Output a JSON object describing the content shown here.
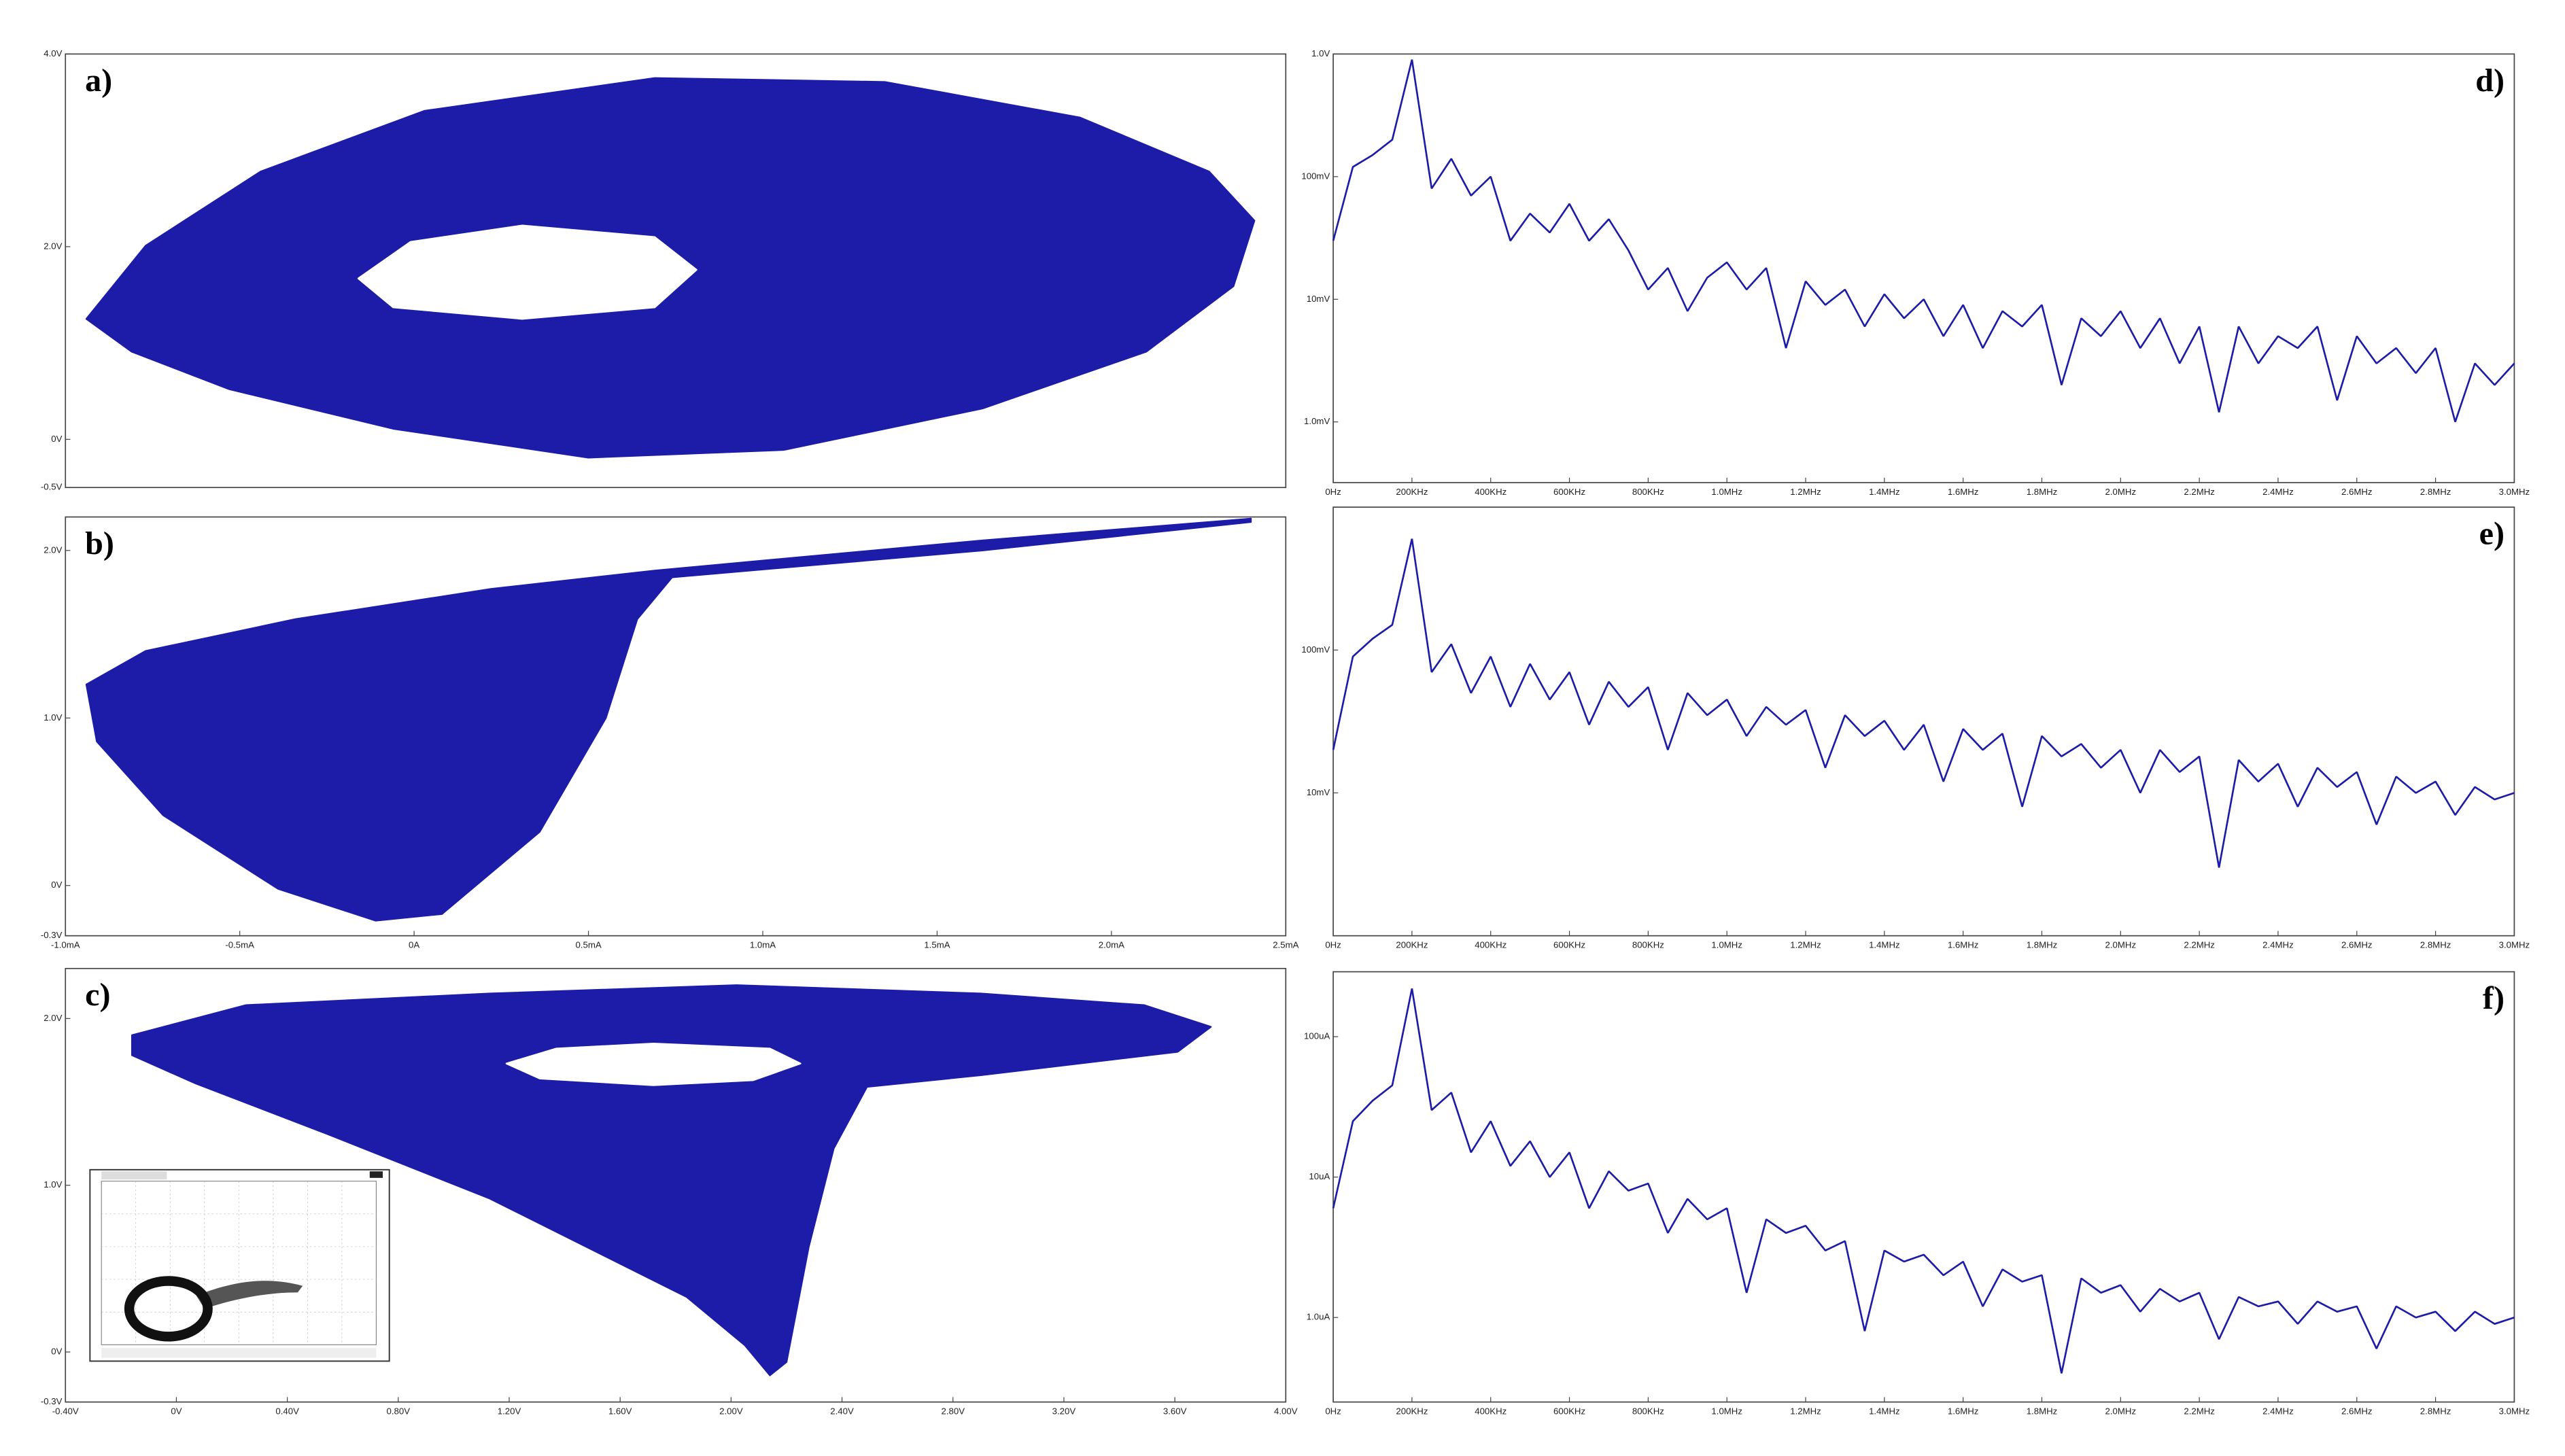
{
  "chart_data": [
    {
      "type": "area",
      "title": "a)",
      "xlim": [
        -1.0,
        2.5
      ],
      "ylim": [
        -0.5,
        4.0
      ],
      "yticks": [
        {
          "value": 4,
          "label": "4.0V"
        },
        {
          "value": 2,
          "label": "2.0V"
        },
        {
          "value": 0,
          "label": "0V"
        },
        {
          "value": -0.5,
          "label": "-0.5V"
        }
      ],
      "series": [
        {
          "color": "#1c1ca8",
          "x": [
            -0.94,
            -0.77,
            -0.44,
            0.03,
            0.69,
            1.35,
            1.91,
            2.28,
            2.41,
            2.35,
            2.1,
            1.63,
            1.06,
            0.5,
            -0.06,
            -0.53,
            -0.81
          ],
          "values": [
            1.25,
            2.01,
            2.78,
            3.41,
            3.75,
            3.71,
            3.34,
            2.78,
            2.27,
            1.59,
            0.91,
            0.32,
            -0.11,
            -0.19,
            0.11,
            0.52,
            0.91
          ]
        },
        {
          "color": "#ffffff",
          "x": [
            -0.16,
            -0.01,
            0.31,
            0.69,
            0.81,
            0.69,
            0.31,
            -0.06
          ],
          "values": [
            1.67,
            2.05,
            2.22,
            2.1,
            1.76,
            1.37,
            1.25,
            1.37
          ]
        }
      ]
    },
    {
      "type": "area",
      "title": "b)",
      "xlim": [
        -1.0,
        2.5
      ],
      "ylim": [
        -0.3,
        2.2
      ],
      "xticks": [
        {
          "value": -1.0,
          "label": "-1.0mA"
        },
        {
          "value": -0.5,
          "label": "-0.5mA"
        },
        {
          "value": 0,
          "label": "0A"
        },
        {
          "value": 0.5,
          "label": "0.5mA"
        },
        {
          "value": 1.0,
          "label": "1.0mA"
        },
        {
          "value": 1.5,
          "label": "1.5mA"
        },
        {
          "value": 2.0,
          "label": "2.0mA"
        },
        {
          "value": 2.5,
          "label": "2.5mA"
        }
      ],
      "yticks": [
        {
          "value": 2,
          "label": "2.0V"
        },
        {
          "value": 1,
          "label": "1.0V"
        },
        {
          "value": 0,
          "label": "0V"
        },
        {
          "value": -0.3,
          "label": "-0.3V"
        }
      ],
      "series": [
        {
          "color": "#1c1ca8",
          "x": [
            -0.94,
            -0.77,
            -0.34,
            0.22,
            0.69,
            1.63,
            2.4,
            2.4,
            1.63,
            0.74,
            0.64,
            0.55,
            0.36,
            0.08,
            -0.11,
            -0.39,
            -0.72,
            -0.91
          ],
          "values": [
            1.2,
            1.4,
            1.59,
            1.77,
            1.88,
            2.06,
            2.19,
            2.17,
            2.0,
            1.84,
            1.59,
            1.0,
            0.32,
            -0.17,
            -0.21,
            -0.02,
            0.42,
            0.86
          ]
        }
      ]
    },
    {
      "type": "area",
      "title": "c)",
      "xlim": [
        -0.4,
        4.0
      ],
      "ylim": [
        -0.3,
        2.3
      ],
      "xticks": [
        {
          "value": -0.4,
          "label": "-0.40V"
        },
        {
          "value": 0,
          "label": "0V"
        },
        {
          "value": 0.4,
          "label": "0.40V"
        },
        {
          "value": 0.8,
          "label": "0.80V"
        },
        {
          "value": 1.2,
          "label": "1.20V"
        },
        {
          "value": 1.6,
          "label": "1.60V"
        },
        {
          "value": 2.0,
          "label": "2.00V"
        },
        {
          "value": 2.4,
          "label": "2.40V"
        },
        {
          "value": 2.8,
          "label": "2.80V"
        },
        {
          "value": 3.2,
          "label": "3.20V"
        },
        {
          "value": 3.6,
          "label": "3.60V"
        },
        {
          "value": 4.0,
          "label": "4.00V"
        }
      ],
      "yticks": [
        {
          "value": 2,
          "label": "2.0V"
        },
        {
          "value": 1,
          "label": "1.0V"
        },
        {
          "value": 0,
          "label": "0V"
        },
        {
          "value": -0.3,
          "label": "-0.3V"
        }
      ],
      "series": [
        {
          "color": "#1c1ca8",
          "x": [
            -0.16,
            0.25,
            1.13,
            2.02,
            2.9,
            3.49,
            3.73,
            3.61,
            2.9,
            2.49,
            2.37,
            2.28,
            2.2,
            2.14,
            2.05,
            1.84,
            1.13,
            0.54,
            0.07,
            -0.16
          ],
          "values": [
            1.9,
            2.08,
            2.15,
            2.2,
            2.15,
            2.08,
            1.95,
            1.8,
            1.66,
            1.59,
            1.22,
            0.63,
            -0.06,
            -0.14,
            0.04,
            0.33,
            0.92,
            1.31,
            1.61,
            1.78
          ]
        },
        {
          "color": "#ffffff",
          "x": [
            1.19,
            1.37,
            1.72,
            2.14,
            2.25,
            2.08,
            1.72,
            1.31
          ],
          "values": [
            1.73,
            1.82,
            1.85,
            1.82,
            1.73,
            1.63,
            1.6,
            1.64
          ]
        }
      ]
    },
    {
      "type": "line",
      "title": "d)",
      "ylog": true,
      "xlim": [
        0,
        3000000
      ],
      "ylim": [
        0.00032,
        1
      ],
      "xticks": [
        {
          "value": 0,
          "label": "0Hz"
        },
        {
          "value": 200000,
          "label": "200KHz"
        },
        {
          "value": 400000,
          "label": "400KHz"
        },
        {
          "value": 600000,
          "label": "600KHz"
        },
        {
          "value": 800000,
          "label": "800KHz"
        },
        {
          "value": 1000000,
          "label": "1.0MHz"
        },
        {
          "value": 1200000,
          "label": "1.2MHz"
        },
        {
          "value": 1400000,
          "label": "1.4MHz"
        },
        {
          "value": 1600000,
          "label": "1.6MHz"
        },
        {
          "value": 1800000,
          "label": "1.8MHz"
        },
        {
          "value": 2000000,
          "label": "2.0MHz"
        },
        {
          "value": 2200000,
          "label": "2.2MHz"
        },
        {
          "value": 2400000,
          "label": "2.4MHz"
        },
        {
          "value": 2600000,
          "label": "2.6MHz"
        },
        {
          "value": 2800000,
          "label": "2.8MHz"
        },
        {
          "value": 3000000,
          "label": "3.0MHz"
        }
      ],
      "yticks": [
        {
          "value": 1,
          "label": "1.0V"
        },
        {
          "value": 0.1,
          "label": "100mV"
        },
        {
          "value": 0.01,
          "label": "10mV"
        },
        {
          "value": 0.001,
          "label": "1.0mV"
        }
      ],
      "x": [
        0,
        50000,
        100000,
        150000,
        200000,
        250000,
        300000,
        350000,
        400000,
        450000,
        500000,
        550000,
        600000,
        650000,
        700000,
        750000,
        800000,
        850000,
        900000,
        950000,
        1000000,
        1050000,
        1100000,
        1150000,
        1200000,
        1250000,
        1300000,
        1350000,
        1400000,
        1450000,
        1500000,
        1550000,
        1600000,
        1650000,
        1700000,
        1750000,
        1800000,
        1850000,
        1900000,
        1950000,
        2000000,
        2050000,
        2100000,
        2150000,
        2200000,
        2250000,
        2300000,
        2350000,
        2400000,
        2450000,
        2500000,
        2550000,
        2600000,
        2650000,
        2700000,
        2750000,
        2800000,
        2850000,
        2900000,
        2950000,
        3000000
      ],
      "series": [
        {
          "color": "#1c1ca8",
          "values": [
            0.03,
            0.12,
            0.15,
            0.2,
            0.9,
            0.08,
            0.14,
            0.07,
            0.1,
            0.03,
            0.05,
            0.035,
            0.06,
            0.03,
            0.045,
            0.025,
            0.012,
            0.018,
            0.008,
            0.015,
            0.02,
            0.012,
            0.018,
            0.004,
            0.014,
            0.009,
            0.012,
            0.006,
            0.011,
            0.007,
            0.01,
            0.005,
            0.009,
            0.004,
            0.008,
            0.006,
            0.009,
            0.002,
            0.007,
            0.005,
            0.008,
            0.004,
            0.007,
            0.003,
            0.006,
            0.0012,
            0.006,
            0.003,
            0.005,
            0.004,
            0.006,
            0.0015,
            0.005,
            0.003,
            0.004,
            0.0025,
            0.004,
            0.001,
            0.003,
            0.002,
            0.003
          ]
        }
      ]
    },
    {
      "type": "line",
      "title": "e)",
      "ylog": true,
      "xlim": [
        0,
        3000000
      ],
      "ylim": [
        0.001,
        1
      ],
      "xticks": [
        {
          "value": 0,
          "label": "0Hz"
        },
        {
          "value": 200000,
          "label": "200KHz"
        },
        {
          "value": 400000,
          "label": "400KHz"
        },
        {
          "value": 600000,
          "label": "600KHz"
        },
        {
          "value": 800000,
          "label": "800KHz"
        },
        {
          "value": 1000000,
          "label": "1.0MHz"
        },
        {
          "value": 1200000,
          "label": "1.2MHz"
        },
        {
          "value": 1400000,
          "label": "1.4MHz"
        },
        {
          "value": 1600000,
          "label": "1.6MHz"
        },
        {
          "value": 1800000,
          "label": "1.8MHz"
        },
        {
          "value": 2000000,
          "label": "2.0MHz"
        },
        {
          "value": 2200000,
          "label": "2.2MHz"
        },
        {
          "value": 2400000,
          "label": "2.4MHz"
        },
        {
          "value": 2600000,
          "label": "2.6MHz"
        },
        {
          "value": 2800000,
          "label": "2.8MHz"
        },
        {
          "value": 3000000,
          "label": "3.0MHz"
        }
      ],
      "yticks": [
        {
          "value": 0.1,
          "label": "100mV"
        },
        {
          "value": 0.01,
          "label": "10mV"
        }
      ],
      "x": [
        0,
        50000,
        100000,
        150000,
        200000,
        250000,
        300000,
        350000,
        400000,
        450000,
        500000,
        550000,
        600000,
        650000,
        700000,
        750000,
        800000,
        850000,
        900000,
        950000,
        1000000,
        1050000,
        1100000,
        1150000,
        1200000,
        1250000,
        1300000,
        1350000,
        1400000,
        1450000,
        1500000,
        1550000,
        1600000,
        1650000,
        1700000,
        1750000,
        1800000,
        1850000,
        1900000,
        1950000,
        2000000,
        2050000,
        2100000,
        2150000,
        2200000,
        2250000,
        2300000,
        2350000,
        2400000,
        2450000,
        2500000,
        2550000,
        2600000,
        2650000,
        2700000,
        2750000,
        2800000,
        2850000,
        2900000,
        2950000,
        3000000
      ],
      "series": [
        {
          "color": "#1c1ca8",
          "values": [
            0.02,
            0.09,
            0.12,
            0.15,
            0.6,
            0.07,
            0.11,
            0.05,
            0.09,
            0.04,
            0.08,
            0.045,
            0.07,
            0.03,
            0.06,
            0.04,
            0.055,
            0.02,
            0.05,
            0.035,
            0.045,
            0.025,
            0.04,
            0.03,
            0.038,
            0.015,
            0.035,
            0.025,
            0.032,
            0.02,
            0.03,
            0.012,
            0.028,
            0.02,
            0.026,
            0.008,
            0.025,
            0.018,
            0.022,
            0.015,
            0.02,
            0.01,
            0.02,
            0.014,
            0.018,
            0.003,
            0.017,
            0.012,
            0.016,
            0.008,
            0.015,
            0.011,
            0.014,
            0.006,
            0.013,
            0.01,
            0.012,
            0.007,
            0.011,
            0.009,
            0.01
          ]
        }
      ]
    },
    {
      "type": "line",
      "title": "f)",
      "ylog": true,
      "xlim": [
        0,
        3000000
      ],
      "ylim": [
        2.5e-07,
        0.00029
      ],
      "xticks": [
        {
          "value": 0,
          "label": "0Hz"
        },
        {
          "value": 200000,
          "label": "200KHz"
        },
        {
          "value": 400000,
          "label": "400KHz"
        },
        {
          "value": 600000,
          "label": "600KHz"
        },
        {
          "value": 800000,
          "label": "800KHz"
        },
        {
          "value": 1000000,
          "label": "1.0MHz"
        },
        {
          "value": 1200000,
          "label": "1.2MHz"
        },
        {
          "value": 1400000,
          "label": "1.4MHz"
        },
        {
          "value": 1600000,
          "label": "1.6MHz"
        },
        {
          "value": 1800000,
          "label": "1.8MHz"
        },
        {
          "value": 2000000,
          "label": "2.0MHz"
        },
        {
          "value": 2200000,
          "label": "2.2MHz"
        },
        {
          "value": 2400000,
          "label": "2.4MHz"
        },
        {
          "value": 2600000,
          "label": "2.6MHz"
        },
        {
          "value": 2800000,
          "label": "2.8MHz"
        },
        {
          "value": 3000000,
          "label": "3.0MHz"
        }
      ],
      "yticks": [
        {
          "value": 0.0001,
          "label": "100uA"
        },
        {
          "value": 1e-05,
          "label": "10uA"
        },
        {
          "value": 1e-06,
          "label": "1.0uA"
        }
      ],
      "x": [
        0,
        50000,
        100000,
        150000,
        200000,
        250000,
        300000,
        350000,
        400000,
        450000,
        500000,
        550000,
        600000,
        650000,
        700000,
        750000,
        800000,
        850000,
        900000,
        950000,
        1000000,
        1050000,
        1100000,
        1150000,
        1200000,
        1250000,
        1300000,
        1350000,
        1400000,
        1450000,
        1500000,
        1550000,
        1600000,
        1650000,
        1700000,
        1750000,
        1800000,
        1850000,
        1900000,
        1950000,
        2000000,
        2050000,
        2100000,
        2150000,
        2200000,
        2250000,
        2300000,
        2350000,
        2400000,
        2450000,
        2500000,
        2550000,
        2600000,
        2650000,
        2700000,
        2750000,
        2800000,
        2850000,
        2900000,
        2950000,
        3000000
      ],
      "series": [
        {
          "color": "#1c1ca8",
          "values": [
            6e-06,
            2.5e-05,
            3.5e-05,
            4.5e-05,
            0.00022,
            3e-05,
            4e-05,
            1.5e-05,
            2.5e-05,
            1.2e-05,
            1.8e-05,
            1e-05,
            1.5e-05,
            6e-06,
            1.1e-05,
            8e-06,
            9e-06,
            4e-06,
            7e-06,
            5e-06,
            6e-06,
            1.5e-06,
            5e-06,
            4e-06,
            4.5e-06,
            3e-06,
            3.5e-06,
            8e-07,
            3e-06,
            2.5e-06,
            2.8e-06,
            2e-06,
            2.5e-06,
            1.2e-06,
            2.2e-06,
            1.8e-06,
            2e-06,
            4e-07,
            1.9e-06,
            1.5e-06,
            1.7e-06,
            1.1e-06,
            1.6e-06,
            1.3e-06,
            1.5e-06,
            7e-07,
            1.4e-06,
            1.2e-06,
            1.3e-06,
            9e-07,
            1.3e-06,
            1.1e-06,
            1.2e-06,
            6e-07,
            1.2e-06,
            1e-06,
            1.1e-06,
            8e-07,
            1.1e-06,
            9e-07,
            1e-06
          ]
        }
      ]
    }
  ]
}
